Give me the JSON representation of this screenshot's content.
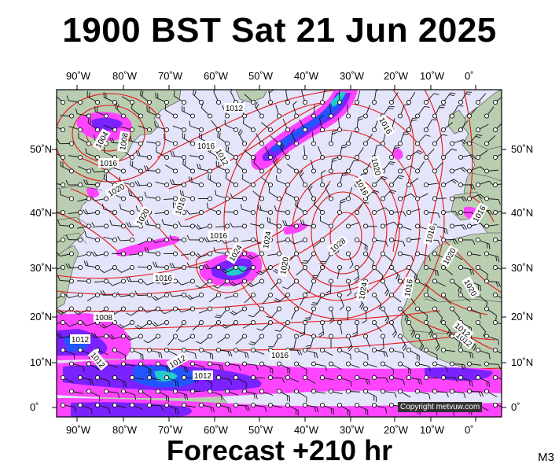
{
  "title": "1900 BST Sat 21 Jun 2025",
  "footer": "Forecast +210 hr",
  "corner_label": "M3",
  "copyright": "Copyright metvuw.com",
  "lon_labels": [
    "90˚W",
    "80˚W",
    "70˚W",
    "60˚W",
    "50˚W",
    "40˚W",
    "30˚W",
    "20˚W",
    "10˚W",
    "0˚"
  ],
  "lat_labels": [
    "50˚N",
    "40˚N",
    "30˚N",
    "20˚N",
    "10˚N",
    "0˚"
  ],
  "isobar_labels": [
    "1012",
    "1016",
    "1004",
    "1016",
    "1008",
    "1020",
    "1016",
    "1012",
    "1020",
    "1016",
    "1016",
    "1020",
    "1024",
    "1016",
    "1020",
    "1024",
    "1028",
    "1016",
    "1020",
    "1024",
    "1016",
    "1016",
    "1020",
    "1008",
    "1016",
    "1012",
    "1012",
    "1012",
    "1012",
    "1016",
    "1012",
    "1012"
  ],
  "colors": {
    "ocean": "#e4e4fa",
    "land": "#b9cdb1",
    "isobar": "#e61414",
    "rain_light": "#ff44ff",
    "rain_mid": "#7a22ff",
    "rain_heavy": "#2255ff",
    "rain_extreme": "#22cccc"
  },
  "icons": [
    "wind-barb-icon",
    "station-circle-icon"
  ]
}
